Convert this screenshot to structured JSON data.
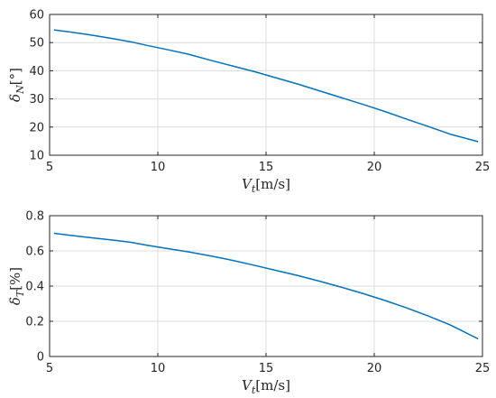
{
  "chart_data": [
    {
      "type": "line",
      "xlabel": {
        "main": "V",
        "sub": "t",
        "unit": "[m/s]"
      },
      "ylabel": {
        "main": "δ",
        "sub": "N",
        "unit": "[°]"
      },
      "xlim": [
        5,
        25
      ],
      "ylim": [
        10,
        60
      ],
      "xticks": [
        "5",
        "10",
        "15",
        "20",
        "25"
      ],
      "yticks": [
        "10",
        "20",
        "30",
        "40",
        "50",
        "60"
      ],
      "grid": true,
      "line_color": "#0072BD",
      "series": [
        {
          "x": [
            5.2,
            6,
            7,
            8,
            8.8,
            9.5,
            10.5,
            11.4,
            12.5,
            13.5,
            14.5,
            15.5,
            16.5,
            17.5,
            18.5,
            19.5,
            20.5,
            21.5,
            22.5,
            23.5,
            24.8
          ],
          "y": [
            54.5,
            53.7,
            52.6,
            51.3,
            50.2,
            49.0,
            47.4,
            45.9,
            43.6,
            41.6,
            39.6,
            37.4,
            35.2,
            32.8,
            30.4,
            28.0,
            25.5,
            22.8,
            20.2,
            17.5,
            14.8
          ]
        }
      ]
    },
    {
      "type": "line",
      "xlabel": {
        "main": "V",
        "sub": "t",
        "unit": "[m/s]"
      },
      "ylabel": {
        "main": "δ",
        "sub": "T",
        "unit": "[%]"
      },
      "xlim": [
        5,
        25
      ],
      "ylim": [
        0,
        0.8
      ],
      "xticks": [
        "5",
        "10",
        "15",
        "20",
        "25"
      ],
      "yticks": [
        "0",
        "0.2",
        "0.4",
        "0.6",
        "0.8"
      ],
      "grid": true,
      "line_color": "#0072BD",
      "series": [
        {
          "x": [
            5.2,
            6,
            7,
            8,
            8.8,
            9.5,
            10.5,
            11.4,
            12.5,
            13.5,
            14.5,
            15.5,
            16.5,
            17.5,
            18.5,
            19.5,
            20.5,
            21.5,
            22.5,
            23.5,
            24.8
          ],
          "y": [
            0.7,
            0.688,
            0.674,
            0.66,
            0.648,
            0.632,
            0.612,
            0.595,
            0.57,
            0.545,
            0.517,
            0.488,
            0.459,
            0.427,
            0.393,
            0.357,
            0.318,
            0.276,
            0.23,
            0.18,
            0.1
          ]
        }
      ]
    }
  ]
}
